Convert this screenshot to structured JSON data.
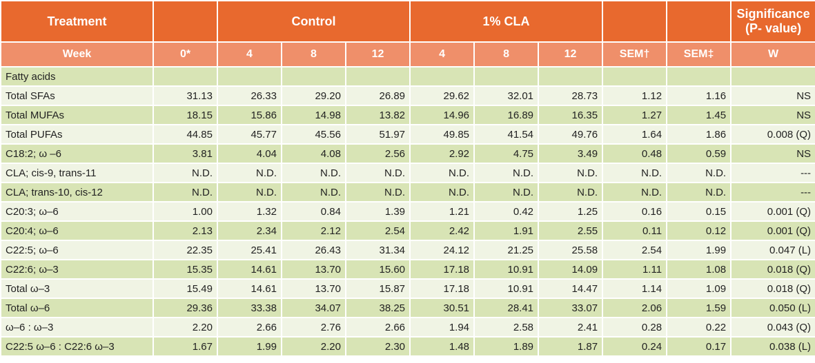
{
  "header": {
    "treatment": "Treatment",
    "control": "Control",
    "cla": "1% CLA",
    "significance_line1": "Significance",
    "significance_line2": "(P- value)",
    "week": "Week",
    "weeks": [
      "0*",
      "4",
      "8",
      "12",
      "4",
      "8",
      "12"
    ],
    "sem1": "SEM†",
    "sem2": "SEM‡",
    "w": "W"
  },
  "section_label": "Fatty acids",
  "rows": [
    {
      "label": "Total SFAs",
      "values": [
        "31.13",
        "26.33",
        "29.20",
        "26.89",
        "29.62",
        "32.01",
        "28.73",
        "1.12",
        "1.16",
        "NS"
      ]
    },
    {
      "label": "Total MUFAs",
      "values": [
        "18.15",
        "15.86",
        "14.98",
        "13.82",
        "14.96",
        "16.89",
        "16.35",
        "1.27",
        "1.45",
        "NS"
      ]
    },
    {
      "label": "Total PUFAs",
      "values": [
        "44.85",
        "45.77",
        "45.56",
        "51.97",
        "49.85",
        "41.54",
        "49.76",
        "1.64",
        "1.86",
        "0.008 (Q)"
      ]
    },
    {
      "label": "C18:2; ω –6",
      "values": [
        "3.81",
        "4.04",
        "4.08",
        "2.56",
        "2.92",
        "4.75",
        "3.49",
        "0.48",
        "0.59",
        "NS"
      ]
    },
    {
      "label": "CLA; cis-9, trans-11",
      "values": [
        "N.D.",
        "N.D.",
        "N.D.",
        "N.D.",
        "N.D.",
        "N.D.",
        "N.D.",
        "N.D.",
        "N.D.",
        "---"
      ]
    },
    {
      "label": "CLA; trans-10, cis-12",
      "values": [
        "N.D.",
        "N.D.",
        "N.D.",
        "N.D.",
        "N.D.",
        "N.D.",
        "N.D.",
        "N.D.",
        "N.D.",
        "---"
      ]
    },
    {
      "label": "C20:3; ω–6",
      "values": [
        "1.00",
        "1.32",
        "0.84",
        "1.39",
        "1.21",
        "0.42",
        "1.25",
        "0.16",
        "0.15",
        "0.001 (Q)"
      ]
    },
    {
      "label": "C20:4; ω–6",
      "values": [
        "2.13",
        "2.34",
        "2.12",
        "2.54",
        "2.42",
        "1.91",
        "2.55",
        "0.11",
        "0.12",
        "0.001 (Q)"
      ]
    },
    {
      "label": "C22:5; ω–6",
      "values": [
        "22.35",
        "25.41",
        "26.43",
        "31.34",
        "24.12",
        "21.25",
        "25.58",
        "2.54",
        "1.99",
        "0.047 (L)"
      ]
    },
    {
      "label": "C22:6; ω–3",
      "values": [
        "15.35",
        "14.61",
        "13.70",
        "15.60",
        "17.18",
        "10.91",
        "14.09",
        "1.11",
        "1.08",
        "0.018 (Q)"
      ]
    },
    {
      "label": "Total ω–3",
      "values": [
        "15.49",
        "14.61",
        "13.70",
        "15.87",
        "17.18",
        "10.91",
        "14.47",
        "1.14",
        "1.09",
        "0.018 (Q)"
      ]
    },
    {
      "label": "Total ω–6",
      "values": [
        "29.36",
        "33.38",
        "34.07",
        "38.25",
        "30.51",
        "28.41",
        "33.07",
        "2.06",
        "1.59",
        "0.050 (L)"
      ]
    },
    {
      "label": "ω–6 : ω–3",
      "values": [
        "2.20",
        "2.66",
        "2.76",
        "2.66",
        "1.94",
        "2.58",
        "2.41",
        "0.28",
        "0.22",
        "0.043 (Q)"
      ]
    },
    {
      "label": "C22:5 ω–6 : C22:6 ω–3",
      "values": [
        "1.67",
        "1.99",
        "2.20",
        "2.30",
        "1.48",
        "1.89",
        "1.87",
        "0.24",
        "0.17",
        "0.038 (L)"
      ]
    }
  ]
}
